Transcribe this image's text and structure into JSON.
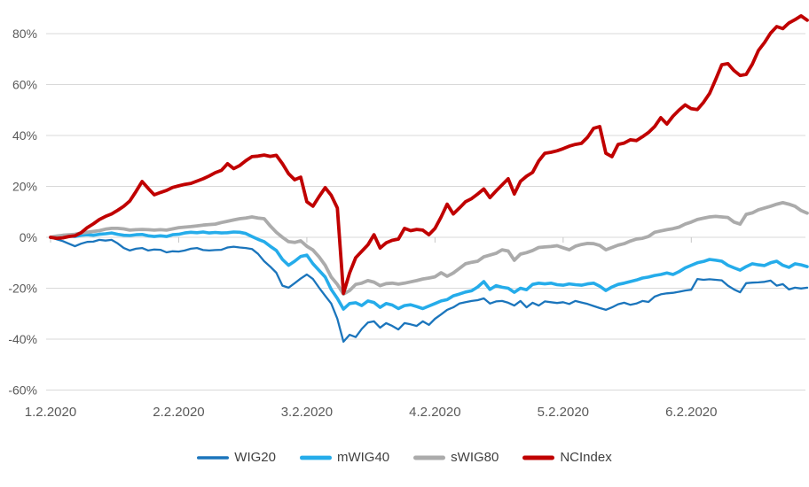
{
  "chart_data": {
    "type": "line",
    "title": "",
    "grid": true,
    "legend_position": "bottom",
    "n_points": 125,
    "ylim": [
      -60,
      93
    ],
    "y_axis": {
      "ticks": [
        80,
        60,
        40,
        20,
        0,
        -20,
        -40,
        -60
      ],
      "tick_labels": [
        "80%",
        "60%",
        "40%",
        "20%",
        "0%",
        "-20%",
        "-40%",
        "-60%"
      ]
    },
    "x_axis": {
      "tick_labels": [
        "1.2.2020",
        "2.2.2020",
        "3.2.2020",
        "4.2.2020",
        "5.2.2020",
        "6.2.2020"
      ],
      "tick_indices": [
        0,
        21,
        42,
        63,
        84,
        105
      ]
    },
    "series": [
      {
        "name": "WIG20",
        "color": "#1B75BC",
        "stroke_width": 2.3,
        "values": [
          0,
          -0.8,
          -1.5,
          -2.5,
          -3.5,
          -2.5,
          -1.8,
          -1.7,
          -1,
          -1.3,
          -1,
          -2.4,
          -4.2,
          -5.2,
          -4.5,
          -4.2,
          -5.2,
          -4.8,
          -4.9,
          -5.9,
          -5.5,
          -5.6,
          -5.2,
          -4.5,
          -4.2,
          -5,
          -5.2,
          -5,
          -4.9,
          -4,
          -3.7,
          -4,
          -4.2,
          -4.6,
          -6.5,
          -9.4,
          -11.5,
          -13.9,
          -19,
          -19.8,
          -18,
          -16.2,
          -14.6,
          -16.4,
          -19.8,
          -23,
          -26,
          -32,
          -41,
          -38.3,
          -39.2,
          -36,
          -33.5,
          -33,
          -35.5,
          -33.7,
          -34.8,
          -36.2,
          -33.7,
          -34.2,
          -34.8,
          -33,
          -34.4,
          -32,
          -30.3,
          -28.5,
          -27.5,
          -26,
          -25.5,
          -25,
          -24.7,
          -24,
          -26,
          -25.2,
          -25,
          -25.7,
          -26.8,
          -25,
          -27.5,
          -25.7,
          -26.8,
          -25.2,
          -25.5,
          -25.8,
          -25.5,
          -26.2,
          -25,
          -25.6,
          -26.2,
          -27,
          -27.8,
          -28.5,
          -27.5,
          -26.3,
          -25.7,
          -26.5,
          -26,
          -25,
          -25.4,
          -23.3,
          -22.4,
          -22,
          -21.8,
          -21.4,
          -20.9,
          -20.6,
          -16.4,
          -16.7,
          -16.5,
          -16.7,
          -16.9,
          -19,
          -20.5,
          -21.6,
          -18,
          -17.8,
          -17.7,
          -17.5,
          -17,
          -19,
          -18.4,
          -20.5,
          -19.8,
          -20.1,
          -19.8
        ]
      },
      {
        "name": "mWIG40",
        "color": "#25ACEA",
        "stroke_width": 3.6,
        "values": [
          0,
          0.3,
          0.2,
          0.5,
          0.3,
          0.8,
          1,
          0.8,
          1.2,
          1.4,
          1.7,
          1.2,
          0.8,
          0.7,
          1,
          1.1,
          0.6,
          0.3,
          0.6,
          0.3,
          1,
          1.2,
          1.7,
          2,
          1.8,
          2.1,
          1.7,
          1.9,
          1.7,
          1.8,
          2.1,
          2,
          1.5,
          0.3,
          -0.8,
          -1.7,
          -3.5,
          -5.2,
          -8.7,
          -11,
          -9.4,
          -7.5,
          -7,
          -10.4,
          -13,
          -15.6,
          -20.5,
          -24,
          -28.2,
          -26,
          -25.7,
          -26.8,
          -25,
          -25.6,
          -27.5,
          -26,
          -26.6,
          -28,
          -26.8,
          -26.5,
          -27.2,
          -28,
          -27,
          -26,
          -25,
          -24.5,
          -23,
          -22.3,
          -21.5,
          -21,
          -19.5,
          -17.4,
          -20.5,
          -19,
          -19.6,
          -20,
          -21.6,
          -20,
          -20.6,
          -18.5,
          -18,
          -18.3,
          -18,
          -18.6,
          -18.8,
          -18.3,
          -18.6,
          -18.8,
          -18.3,
          -18,
          -19.2,
          -20.9,
          -19.5,
          -18.5,
          -18,
          -17.4,
          -16.8,
          -16,
          -15.6,
          -15,
          -14.6,
          -14,
          -14.6,
          -13.5,
          -12,
          -11,
          -10,
          -9.5,
          -8.7,
          -9,
          -9.4,
          -11,
          -12,
          -12.9,
          -11.5,
          -10.4,
          -10.8,
          -11.1,
          -10,
          -9.4,
          -11,
          -11.8,
          -10.4,
          -10.8,
          -11.5
        ]
      },
      {
        "name": "sWIG80",
        "color": "#ABABAB",
        "stroke_width": 3.8,
        "values": [
          0,
          0.5,
          0.8,
          1,
          1.2,
          1.7,
          2,
          2.3,
          2.6,
          3.2,
          3.5,
          3.5,
          3.3,
          2.8,
          3,
          3.1,
          3,
          2.8,
          3,
          2.8,
          3.3,
          3.8,
          4,
          4.2,
          4.5,
          4.8,
          5,
          5.2,
          5.8,
          6.3,
          6.8,
          7.3,
          7.6,
          8,
          7.6,
          7.3,
          4.5,
          2,
          0,
          -1.7,
          -2,
          -1.4,
          -3.5,
          -5,
          -7.7,
          -11,
          -15.6,
          -18.5,
          -22.3,
          -20.9,
          -18.5,
          -18,
          -17,
          -17.6,
          -19,
          -18.2,
          -18,
          -18.4,
          -18,
          -17.5,
          -17,
          -16.4,
          -16,
          -15.5,
          -13.9,
          -15.3,
          -14,
          -12.2,
          -10.4,
          -9.8,
          -9.4,
          -7.7,
          -7,
          -6.3,
          -4.9,
          -5.4,
          -9,
          -6.6,
          -6,
          -5.2,
          -4,
          -3.8,
          -3.6,
          -3.3,
          -4.1,
          -4.9,
          -3.5,
          -2.8,
          -2.4,
          -2.5,
          -3.2,
          -4.9,
          -4,
          -3.1,
          -2.5,
          -1.5,
          -0.7,
          -0.4,
          0.3,
          2,
          2.5,
          3,
          3.4,
          4,
          5.2,
          6,
          7,
          7.5,
          8,
          8.2,
          8,
          7.8,
          6,
          5.2,
          9,
          9.6,
          10.8,
          11.5,
          12.2,
          13,
          13.6,
          13,
          12.2,
          10.5,
          9.5
        ]
      },
      {
        "name": "NCIndex",
        "color": "#C00000",
        "stroke_width": 3.8,
        "values": [
          0,
          -0.4,
          -0.2,
          0.3,
          0.6,
          1.8,
          3.8,
          5.3,
          7,
          8.2,
          9.2,
          10.6,
          12.2,
          14.3,
          18,
          21.9,
          19.2,
          16.7,
          17.6,
          18.4,
          19.6,
          20.2,
          20.8,
          21.2,
          22.1,
          23,
          24.1,
          25.4,
          26.3,
          28.9,
          27,
          28.2,
          30.1,
          31.7,
          31.9,
          32.3,
          31.8,
          32.2,
          28.9,
          25,
          22.6,
          23.6,
          14,
          12.2,
          16,
          19.5,
          16.5,
          11.5,
          -22,
          -14,
          -8,
          -5.5,
          -3,
          1,
          -4.2,
          -2.2,
          -1.2,
          -0.7,
          3.5,
          2.6,
          3.1,
          2.8,
          1,
          3.5,
          8,
          13,
          9.2,
          11.5,
          14,
          15.2,
          17,
          19,
          15.6,
          18.2,
          20.6,
          23,
          17,
          22,
          24,
          25.5,
          30,
          33,
          33.4,
          34,
          34.8,
          35.8,
          36.5,
          36.9,
          39.3,
          42.8,
          43.5,
          33,
          31.7,
          36.5,
          37,
          38.3,
          38,
          39.5,
          41.2,
          43.5,
          47,
          44.5,
          47.6,
          50,
          52,
          50.5,
          50.2,
          53,
          56.5,
          62,
          67.8,
          68.2,
          65.5,
          63.6,
          64,
          68,
          73.4,
          76.5,
          80.2,
          82.8,
          82,
          84.2,
          85.5,
          87,
          85.3
        ]
      }
    ]
  },
  "colors": {
    "background": "#FFFFFF",
    "gridline": "#D9D9D9",
    "tick": "#C6C6C6",
    "axis_text": "#595959",
    "legend_text": "#404040"
  }
}
